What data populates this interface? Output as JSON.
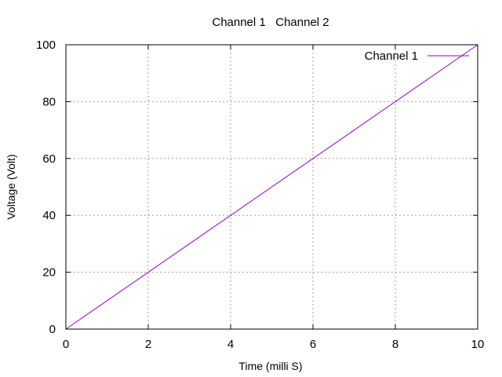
{
  "chart_data": {
    "type": "line",
    "title": "Channel 1   Channel 2",
    "xlabel": "Time (milli S)",
    "ylabel": "Voltage (Volt)",
    "xlim": [
      0,
      10
    ],
    "ylim": [
      0,
      100
    ],
    "xticks": [
      "0",
      "2",
      "4",
      "6",
      "8",
      "10"
    ],
    "yticks": [
      "0",
      "20",
      "40",
      "60",
      "80",
      "100"
    ],
    "grid": true,
    "legend": {
      "placement": "top-right",
      "entries": [
        "Channel 1"
      ]
    },
    "series": [
      {
        "name": "Channel 1",
        "color": "#9400d3",
        "x": [
          0,
          10
        ],
        "y": [
          0,
          100
        ]
      }
    ]
  }
}
